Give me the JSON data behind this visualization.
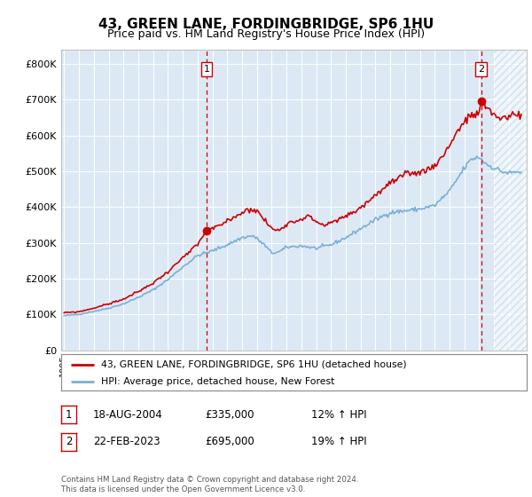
{
  "title": "43, GREEN LANE, FORDINGBRIDGE, SP6 1HU",
  "subtitle": "Price paid vs. HM Land Registry's House Price Index (HPI)",
  "title_fontsize": 11,
  "subtitle_fontsize": 9,
  "plot_bg_color": "#dce9f5",
  "red_color": "#cc0000",
  "blue_color": "#7bafd4",
  "legend_label_red": "43, GREEN LANE, FORDINGBRIDGE, SP6 1HU (detached house)",
  "legend_label_blue": "HPI: Average price, detached house, New Forest",
  "sale1_date": "18-AUG-2004",
  "sale1_price": "£335,000",
  "sale1_hpi": "12% ↑ HPI",
  "sale2_date": "22-FEB-2023",
  "sale2_price": "£695,000",
  "sale2_hpi": "19% ↑ HPI",
  "footer": "Contains HM Land Registry data © Crown copyright and database right 2024.\nThis data is licensed under the Open Government Licence v3.0.",
  "ylim": [
    0,
    840000
  ],
  "yticks": [
    0,
    100000,
    200000,
    300000,
    400000,
    500000,
    600000,
    700000,
    800000
  ],
  "ytick_labels": [
    "£0",
    "£100K",
    "£200K",
    "£300K",
    "£400K",
    "£500K",
    "£600K",
    "£700K",
    "£800K"
  ],
  "xmin": 1994.8,
  "xmax": 2026.2,
  "sale1_x": 2004.62,
  "sale1_y": 335000,
  "sale2_x": 2023.12,
  "sale2_y": 695000,
  "hatch_start": 2024.0
}
